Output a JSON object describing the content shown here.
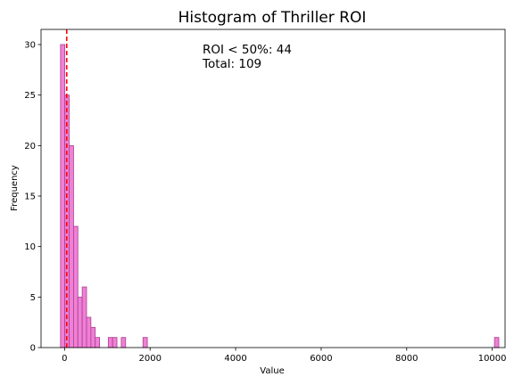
{
  "chart_data": {
    "type": "bar",
    "title": "Histogram of Thriller ROI",
    "xlabel": "Value",
    "ylabel": "Frequency",
    "xlim": [
      -550,
      10300
    ],
    "ylim": [
      0,
      31.5
    ],
    "x_ticks": [
      0,
      2000,
      4000,
      6000,
      8000,
      10000
    ],
    "y_ticks": [
      0,
      5,
      10,
      15,
      20,
      25,
      30
    ],
    "bin_width": 101.5,
    "bins": [
      {
        "start": -95,
        "count": 30
      },
      {
        "start": 6.5,
        "count": 25
      },
      {
        "start": 108,
        "count": 20
      },
      {
        "start": 209.5,
        "count": 12
      },
      {
        "start": 311,
        "count": 5
      },
      {
        "start": 412.5,
        "count": 6
      },
      {
        "start": 514,
        "count": 3
      },
      {
        "start": 615.5,
        "count": 2
      },
      {
        "start": 717,
        "count": 1
      },
      {
        "start": 1021.5,
        "count": 1
      },
      {
        "start": 1123,
        "count": 1
      },
      {
        "start": 1326,
        "count": 1
      },
      {
        "start": 1833.5,
        "count": 1
      },
      {
        "start": 10052,
        "count": 1
      }
    ],
    "reference_line": {
      "x": 50,
      "color": "#ff0000",
      "style": "dashed"
    },
    "annotation": {
      "line1": "ROI < 50%: 44",
      "line2": "Total: 109"
    },
    "bar_color": "#f07fd6",
    "bar_edge_color": "#a8408f"
  }
}
